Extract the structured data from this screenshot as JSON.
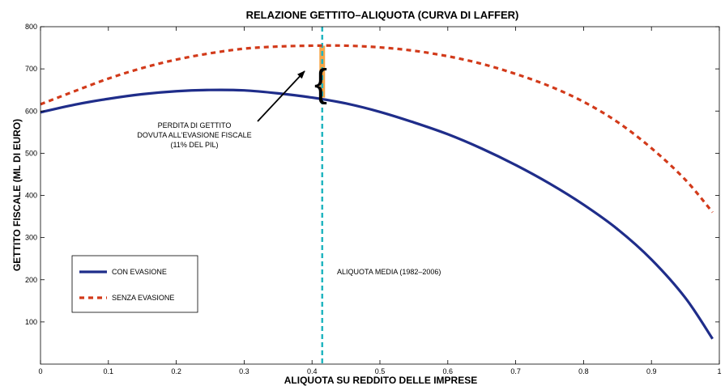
{
  "chart_data": {
    "type": "line",
    "title": "RELAZIONE GETTITO–ALIQUOTA (CURVA DI LAFFER)",
    "xlabel": "ALIQUOTA SU REDDITO DELLE IMPRESE",
    "ylabel": "GETTITO FISCALE (ML DI EURO)",
    "xlim": [
      0,
      1
    ],
    "ylim": [
      0,
      800
    ],
    "xticks": [
      0,
      0.1,
      0.2,
      0.3,
      0.4,
      0.5,
      0.6,
      0.7,
      0.8,
      0.9,
      1
    ],
    "yticks": [
      100,
      200,
      300,
      400,
      500,
      600,
      700,
      800
    ],
    "grid": false,
    "legend_position": "bottom-left",
    "series": [
      {
        "name": "CON EVASIONE",
        "color": "#1f2d8a",
        "style": "solid",
        "x": [
          0,
          0.05,
          0.1,
          0.15,
          0.2,
          0.25,
          0.3,
          0.35,
          0.4,
          0.45,
          0.5,
          0.55,
          0.6,
          0.65,
          0.7,
          0.75,
          0.8,
          0.85,
          0.9,
          0.95,
          0.99
        ],
        "y": [
          597,
          615,
          629,
          640,
          647,
          650,
          649,
          642,
          632,
          618,
          598,
          573,
          545,
          511,
          472,
          428,
          378,
          320,
          248,
          157,
          60
        ]
      },
      {
        "name": "SENZA EVASIONE",
        "color": "#d23a1a",
        "style": "dashed",
        "x": [
          0,
          0.05,
          0.1,
          0.15,
          0.2,
          0.25,
          0.3,
          0.35,
          0.4,
          0.45,
          0.5,
          0.55,
          0.6,
          0.65,
          0.7,
          0.75,
          0.8,
          0.85,
          0.9,
          0.95,
          0.99
        ],
        "y": [
          616,
          647,
          677,
          702,
          722,
          737,
          748,
          753,
          755,
          755,
          751,
          743,
          730,
          712,
          688,
          659,
          622,
          574,
          512,
          437,
          360
        ]
      }
    ],
    "vline": {
      "x": 0.415,
      "label": "ALIQUOTA MEDIA (1982–2006)",
      "color": "#22b5c0"
    },
    "gap": {
      "x": 0.415,
      "y_low": 632,
      "y_high": 755,
      "color": "#f4a64a"
    },
    "annotation_lines": [
      "PERDITA DI GETTITO",
      "DOVUTA ALL’EVASIONE FISCALE",
      "(11% DEL PIL)"
    ]
  }
}
